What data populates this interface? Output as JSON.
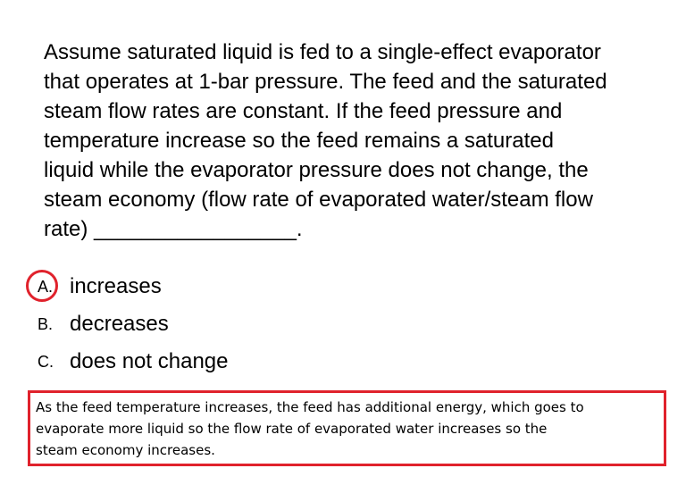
{
  "question": {
    "lines": [
      "Assume saturated liquid is fed to a single-effect evaporator",
      "that operates at 1-bar pressure. The feed and the saturated",
      "steam flow rates are constant. If the feed pressure and",
      "temperature increase so the feed remains a saturated",
      "liquid while the evaporator pressure does not change, the",
      "steam economy (flow rate of evaporated water/steam flow",
      "rate) _________________."
    ]
  },
  "options": [
    {
      "letter": "A.",
      "text": "increases",
      "selected": true
    },
    {
      "letter": "B.",
      "text": "decreases",
      "selected": false
    },
    {
      "letter": "C.",
      "text": "does not change",
      "selected": false
    }
  ],
  "explanation": {
    "lines": [
      "As the feed temperature increases, the feed has additional energy, which goes to",
      "evaporate more liquid so the flow rate of evaporated water increases so the",
      "steam economy increases."
    ]
  },
  "colors": {
    "annotation": "#e0222c",
    "text": "#000000",
    "background": "#ffffff"
  }
}
